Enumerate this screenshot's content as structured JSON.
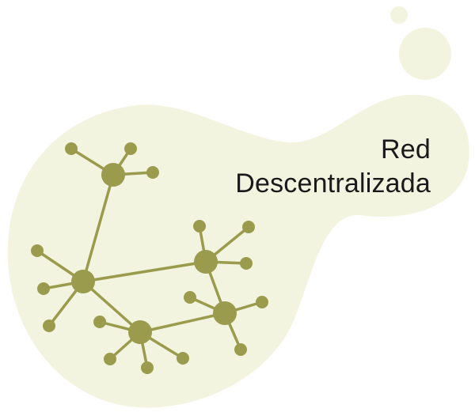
{
  "title": {
    "line1": "Red",
    "line2": "Descentralizada"
  },
  "colors": {
    "blob": "#f3f4df",
    "node": "#9a9b4c",
    "edge": "#9a9b4c"
  },
  "network": {
    "hubs": [
      "hub-top",
      "hub-left",
      "hub-bottom",
      "hub-right",
      "hub-far-right"
    ],
    "hub_links": [
      [
        "hub-top",
        "hub-left"
      ],
      [
        "hub-left",
        "hub-bottom"
      ],
      [
        "hub-left",
        "hub-right"
      ],
      [
        "hub-bottom",
        "hub-far-right"
      ],
      [
        "hub-right",
        "hub-far-right"
      ]
    ],
    "leaves_per_hub": {
      "hub-top": 3,
      "hub-left": 3,
      "hub-bottom": 4,
      "hub-right": 3,
      "hub-far-right": 3
    }
  }
}
